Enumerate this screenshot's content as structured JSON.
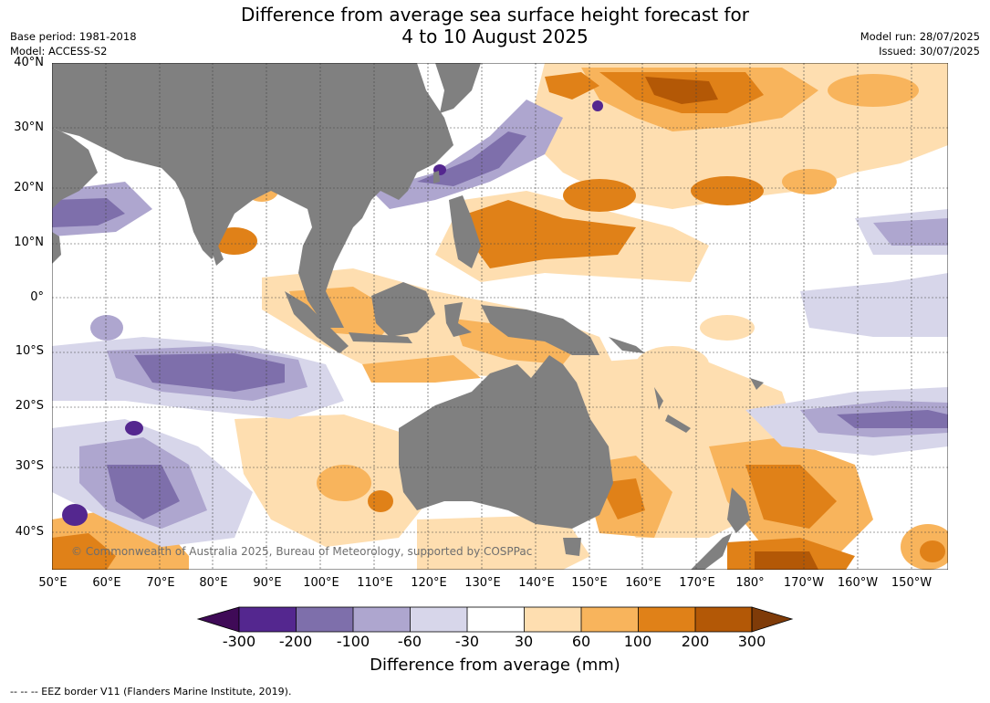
{
  "title": {
    "line1": "Difference from average sea surface height forecast for",
    "line2": "4 to 10 August 2025"
  },
  "meta": {
    "base_period": "Base period: 1981-2018",
    "model": "Model: ACCESS-S2",
    "model_run": "Model run: 28/07/2025",
    "issued": "Issued: 30/07/2025"
  },
  "map": {
    "lat_labels": [
      "40°N",
      "30°N",
      "20°N",
      "10°N",
      "0°",
      "10°S",
      "20°S",
      "30°S",
      "40°S"
    ],
    "lon_labels": [
      "50°E",
      "60°E",
      "70°E",
      "80°E",
      "90°E",
      "100°E",
      "110°E",
      "120°E",
      "130°E",
      "140°E",
      "150°E",
      "160°E",
      "170°E",
      "180°",
      "170°W",
      "160°W",
      "150°W"
    ],
    "credit": "© Commonwealth of Australia 2025, Bureau of Meteorology, supported by COSPPac",
    "land_color": "#808080"
  },
  "colorbar": {
    "label": "Difference from average (mm)",
    "ticks": [
      "-300",
      "-200",
      "-100",
      "-60",
      "-30",
      "30",
      "60",
      "100",
      "200",
      "300"
    ],
    "colors": [
      "#3f0a57",
      "#54278f",
      "#7e6fab",
      "#aea6cf",
      "#d7d6ea",
      "#ffffff",
      "#fedeb0",
      "#f8b45c",
      "#e08118",
      "#b35806",
      "#7f3b08"
    ]
  },
  "footnote": "--  --  -- EEZ border V11 (Flanders Marine Institute, 2019)."
}
